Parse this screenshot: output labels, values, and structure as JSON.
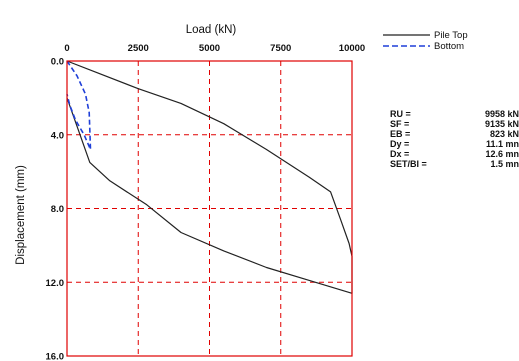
{
  "chart_data": {
    "type": "line",
    "xlabel": "Load (kN)",
    "ylabel": "Displacement (mm)",
    "x_axis_position": "top",
    "y_axis_inverted": true,
    "xlim": [
      0,
      10000
    ],
    "ylim": [
      0,
      16
    ],
    "xticks": [
      0,
      2500,
      5000,
      7500,
      10000
    ],
    "xtick_labels": [
      "0",
      "2500",
      "5000",
      "7500",
      "10000"
    ],
    "yticks": [
      0,
      4,
      8,
      12,
      16
    ],
    "ytick_labels": [
      "0.0",
      "4.0",
      "8.0",
      "12.0",
      "16.0"
    ],
    "grid": true,
    "grid_style": "dashed",
    "grid_color": "#e00000",
    "frame_color": "#e00000",
    "legend_position": "top-right",
    "series": [
      {
        "name": "Pile Top",
        "color": "#222222",
        "style": "solid",
        "x": [
          0,
          1000,
          2500,
          4000,
          5500,
          7000,
          8500,
          9250,
          9600,
          9900,
          10000,
          10000,
          10000,
          8500,
          7000,
          5500,
          4000,
          2800,
          1500,
          800,
          0
        ],
        "y": [
          0,
          0.6,
          1.5,
          2.3,
          3.4,
          4.8,
          6.3,
          7.1,
          8.6,
          9.9,
          10.6,
          11.4,
          12.6,
          11.9,
          11.2,
          10.3,
          9.3,
          7.8,
          6.5,
          5.5,
          2.0
        ]
      },
      {
        "name": "Bottom",
        "color": "#1f3fd8",
        "style": "dashed",
        "x": [
          0,
          350,
          650,
          780,
          823,
          600,
          300,
          100,
          0
        ],
        "y": [
          0,
          0.8,
          1.8,
          2.8,
          4.8,
          4.0,
          3.2,
          2.4,
          1.8
        ]
      }
    ]
  },
  "results": [
    {
      "label": "RU =",
      "value": "9958 kN"
    },
    {
      "label": "SF =",
      "value": "9135 kN"
    },
    {
      "label": "EB =",
      "value": "823 kN"
    },
    {
      "label": "Dy =",
      "value": "11.1 mn"
    },
    {
      "label": "Dx =",
      "value": "12.6 mn"
    },
    {
      "label": "SET/BI =",
      "value": "1.5 mn"
    }
  ]
}
